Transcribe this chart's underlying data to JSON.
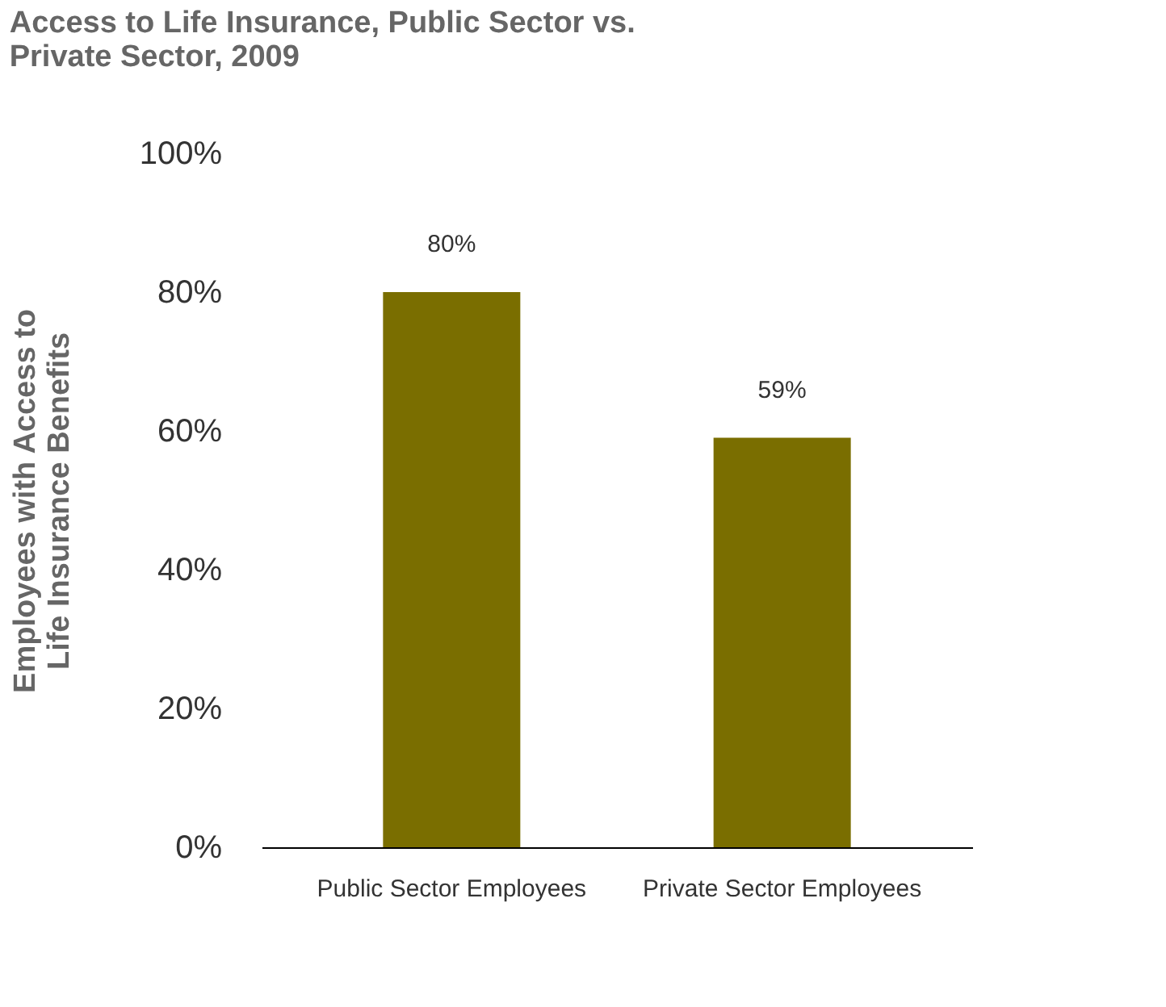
{
  "chart_data": {
    "type": "bar",
    "title": "Access to Life Insurance, Public Sector vs. Private Sector, 2009",
    "ylabel": "Employees with Access to Life Insurance Benefits",
    "categories": [
      "Public Sector Employees",
      "Private Sector Employees"
    ],
    "values": [
      80,
      59
    ],
    "color": "#7a6e00",
    "ylim": [
      0,
      100
    ],
    "yticks": [
      {
        "value": 0,
        "label": "0%"
      },
      {
        "value": 20,
        "label": "20%"
      },
      {
        "value": 40,
        "label": "40%"
      },
      {
        "value": 60,
        "label": "60%"
      },
      {
        "value": 80,
        "label": "80%"
      },
      {
        "value": 100,
        "label": "100%"
      }
    ],
    "value_labels": [
      "80%",
      "59%"
    ],
    "grid": false
  }
}
